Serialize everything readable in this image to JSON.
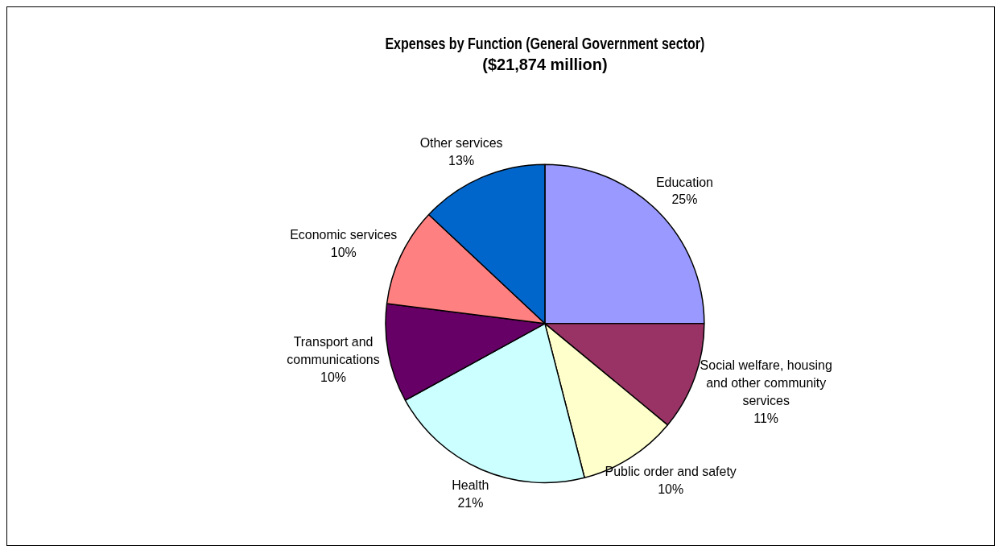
{
  "chart_data": {
    "type": "pie",
    "title": "Expenses by Function (General Government sector)",
    "subtitle": "($21,874 million)",
    "categories": [
      "Education",
      "Social welfare, housing and other community services",
      "Public order and safety",
      "Health",
      "Transport and communications",
      "Economic services",
      "Other services"
    ],
    "values": [
      25,
      11,
      10,
      21,
      10,
      10,
      13
    ],
    "colors": [
      "#9999ff",
      "#993366",
      "#ffffcc",
      "#ccffff",
      "#660066",
      "#ff8080",
      "#0066cc"
    ],
    "value_labels": [
      "25%",
      "11%",
      "10%",
      "21%",
      "10%",
      "10%",
      "13%"
    ],
    "legend": false
  }
}
